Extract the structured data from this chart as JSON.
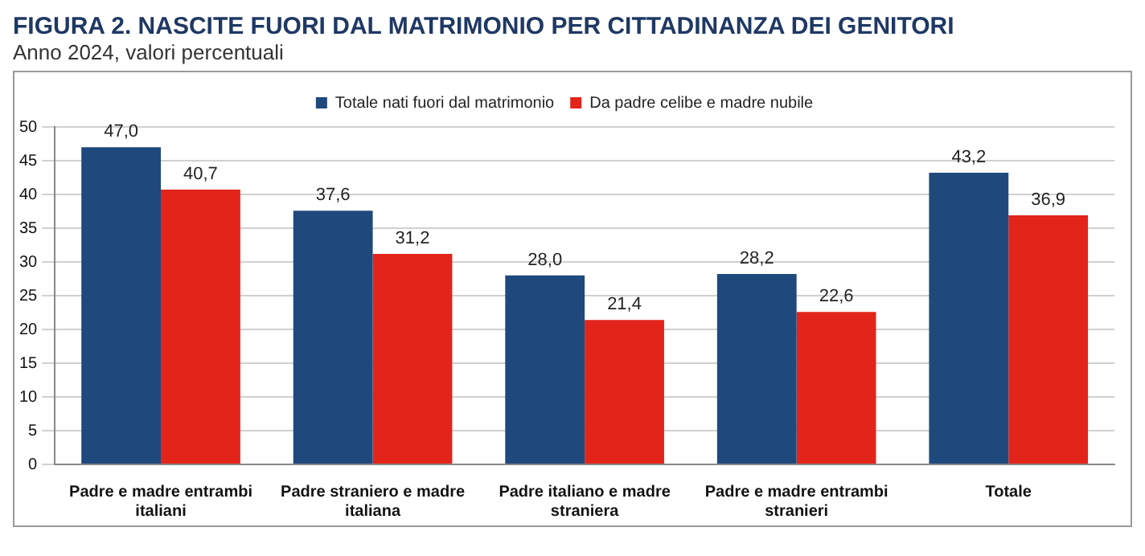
{
  "chart_data": {
    "type": "bar",
    "title": "FIGURA 2. NASCITE FUORI DAL MATRIMONIO PER CITTADINANZA DEI GENITORI",
    "subtitle": "Anno 2024, valori percentuali",
    "categories": [
      "Padre e madre entrambi italiani",
      "Padre straniero e madre italiana",
      "Padre italiano e madre straniera",
      "Padre e madre entrambi stranieri",
      "Totale"
    ],
    "series": [
      {
        "name": "Totale nati fuori dal matrimonio",
        "color": "#1f497d",
        "values": [
          47.0,
          37.6,
          28.0,
          28.2,
          43.2
        ],
        "value_labels": [
          "47,0",
          "37,6",
          "28,0",
          "28,2",
          "43,2"
        ]
      },
      {
        "name": "Da padre celibe e madre nubile",
        "color": "#e3241b",
        "values": [
          40.7,
          31.2,
          21.4,
          22.6,
          36.9
        ],
        "value_labels": [
          "40,7",
          "31,2",
          "21,4",
          "22,6",
          "36,9"
        ]
      }
    ],
    "ylim": [
      0,
      50
    ],
    "yticks": [
      0,
      5,
      10,
      15,
      20,
      25,
      30,
      35,
      40,
      45,
      50
    ],
    "grid": "y",
    "legend": "top"
  }
}
